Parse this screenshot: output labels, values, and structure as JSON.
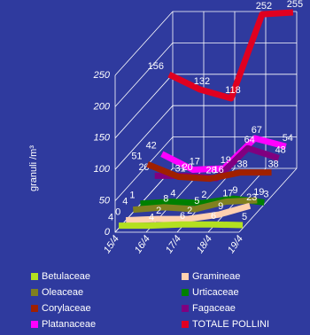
{
  "chart_data": {
    "type": "line3d",
    "ylabel": "granuli /m³",
    "categories": [
      "15/4",
      "16/4",
      "17/4",
      "18/4",
      "19/4"
    ],
    "ylim": [
      0,
      250
    ],
    "yticks": [
      0,
      50,
      100,
      150,
      200,
      250
    ],
    "grid": true,
    "series": [
      {
        "name": "Betulaceae",
        "color": "#b3e020",
        "values": [
          4,
          4,
          6,
          6,
          5
        ]
      },
      {
        "name": "Gramineae",
        "color": "#ffd0b0",
        "values": [
          0,
          2,
          2,
          9,
          23
        ]
      },
      {
        "name": "Oleaceae",
        "color": "#808020",
        "values": [
          4,
          8,
          5,
          17,
          19
        ]
      },
      {
        "name": "Urticaceae",
        "color": "#008000",
        "values": [
          1,
          4,
          2,
          9,
          3
        ]
      },
      {
        "name": "Corylaceae",
        "color": "#a02000",
        "values": [
          51,
          31,
          28,
          38,
          38
        ]
      },
      {
        "name": "Fagaceae",
        "color": "#800080",
        "values": [
          20,
          20,
          16,
          64,
          48
        ]
      },
      {
        "name": "Platanaceae",
        "color": "#ff00ff",
        "values": [
          42,
          17,
          19,
          67,
          54
        ]
      },
      {
        "name": "TOTALE POLLINI",
        "color": "#e00020",
        "values": [
          156,
          132,
          118,
          252,
          255
        ]
      }
    ]
  }
}
